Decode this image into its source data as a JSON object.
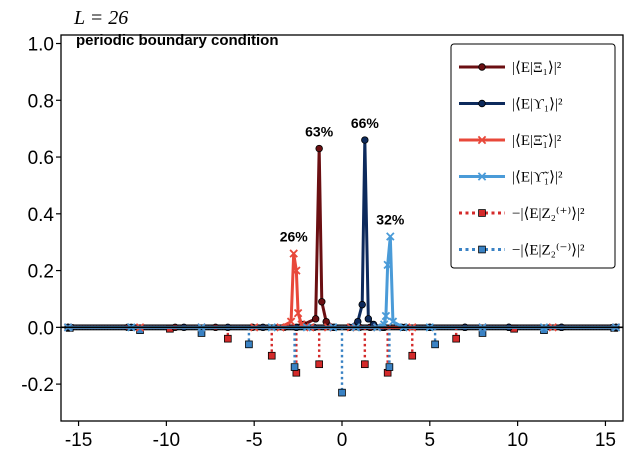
{
  "figure": {
    "top_label": "L = 26",
    "subtitle": "periodic boundary condition"
  },
  "chart_data": {
    "type": "line",
    "xlim": [
      -16,
      16
    ],
    "ylim": [
      -0.33,
      1.03
    ],
    "xticks": [
      -15,
      -10,
      -5,
      0,
      5,
      10,
      15
    ],
    "yticks": [
      1.0,
      0.8,
      0.6,
      0.4,
      0.2,
      0.0,
      -0.2
    ],
    "ytick_labels": [
      "1.0",
      "0.8",
      "0.6",
      "0.4",
      "0.2",
      "0.0",
      "-0.2"
    ],
    "legend_position": "top-right",
    "grid": false,
    "series": [
      {
        "name": "|⟨E|Ξ₁⟩|²",
        "color": "#6b0f12",
        "style": "solid",
        "marker": "circle",
        "x": [
          -15.6,
          -12.2,
          -9.5,
          -7.2,
          -5.1,
          -3.3,
          -2.2,
          -1.5,
          -1.3,
          -1.15,
          -0.9,
          -0.4,
          0.4,
          1.0,
          1.6,
          2.4,
          3.6,
          5.0,
          7.0,
          9.5,
          12.5,
          15.6
        ],
        "y": [
          0.0,
          0.0,
          0.0,
          0.0,
          0.0,
          0.0,
          0.01,
          0.03,
          0.63,
          0.09,
          0.02,
          0.0,
          0.0,
          0.0,
          0.0,
          0.0,
          0.0,
          0.0,
          0.0,
          0.0,
          0.0,
          0.0
        ]
      },
      {
        "name": "|⟨E|ϒ₁⟩|²",
        "color": "#0d2a5c",
        "style": "solid",
        "marker": "circle",
        "x": [
          -15.6,
          -12.0,
          -9.0,
          -6.5,
          -4.5,
          -2.6,
          -1.6,
          -0.5,
          0.4,
          0.9,
          1.15,
          1.3,
          1.5,
          1.8,
          2.3,
          3.4,
          5.0,
          7.0,
          9.5,
          12.5,
          15.6
        ],
        "y": [
          0.0,
          0.0,
          0.0,
          0.0,
          0.0,
          0.0,
          0.0,
          0.0,
          0.0,
          0.02,
          0.08,
          0.66,
          0.03,
          0.01,
          0.0,
          0.0,
          0.0,
          0.0,
          0.0,
          0.0,
          0.0
        ]
      },
      {
        "name": "|⟨E|Ξ̃₁⟩|²",
        "color": "#e8483a",
        "style": "solid",
        "marker": "x",
        "x": [
          -15.6,
          -11.5,
          -8.0,
          -5.0,
          -3.5,
          -2.9,
          -2.75,
          -2.6,
          -2.5,
          -2.3,
          -1.8,
          -0.8,
          0.5,
          2.0,
          4.0,
          8.0,
          12.0,
          15.6
        ],
        "y": [
          0.0,
          0.0,
          0.0,
          0.0,
          0.0,
          0.02,
          0.26,
          0.2,
          0.05,
          0.01,
          0.0,
          0.0,
          0.0,
          0.0,
          0.0,
          0.0,
          0.0,
          0.0
        ]
      },
      {
        "name": "|⟨E|ϒ̃₁⟩|²",
        "color": "#4a9bd8",
        "style": "solid",
        "marker": "x",
        "x": [
          -15.6,
          -12.0,
          -8.0,
          -4.0,
          -2.0,
          -0.5,
          0.8,
          2.0,
          2.4,
          2.5,
          2.6,
          2.75,
          2.9,
          3.5,
          5.0,
          8.0,
          11.5,
          15.6
        ],
        "y": [
          0.0,
          0.0,
          0.0,
          0.0,
          0.0,
          0.0,
          0.0,
          0.0,
          0.01,
          0.04,
          0.22,
          0.32,
          0.02,
          0.0,
          0.0,
          0.0,
          0.0,
          0.0
        ]
      },
      {
        "name": "−|⟨E|Z₂⁽⁺⁾⟩|²",
        "color": "#d42a2a",
        "style": "dotted",
        "marker": "square",
        "x": [
          -9.8,
          -6.5,
          -4.0,
          -2.6,
          -1.3,
          1.3,
          2.6,
          4.0,
          6.5,
          9.8
        ],
        "y": [
          -0.005,
          -0.04,
          -0.1,
          -0.16,
          -0.13,
          -0.13,
          -0.16,
          -0.1,
          -0.04,
          -0.005
        ]
      },
      {
        "name": "−|⟨E|Z₂⁽⁻⁾⟩|²",
        "color": "#3a82c4",
        "style": "dotted",
        "marker": "square",
        "x": [
          -15.5,
          -11.5,
          -8.0,
          -5.3,
          -2.7,
          0.0,
          2.7,
          5.3,
          8.0,
          11.5,
          15.5
        ],
        "y": [
          -0.002,
          -0.01,
          -0.02,
          -0.06,
          -0.14,
          -0.23,
          -0.14,
          -0.06,
          -0.02,
          -0.01,
          -0.002
        ]
      }
    ],
    "annotations": [
      {
        "text": "63%",
        "x": -1.3,
        "y": 0.63
      },
      {
        "text": "66%",
        "x": 1.3,
        "y": 0.66
      },
      {
        "text": "26%",
        "x": -2.75,
        "y": 0.26
      },
      {
        "text": "32%",
        "x": 2.75,
        "y": 0.32
      }
    ]
  }
}
